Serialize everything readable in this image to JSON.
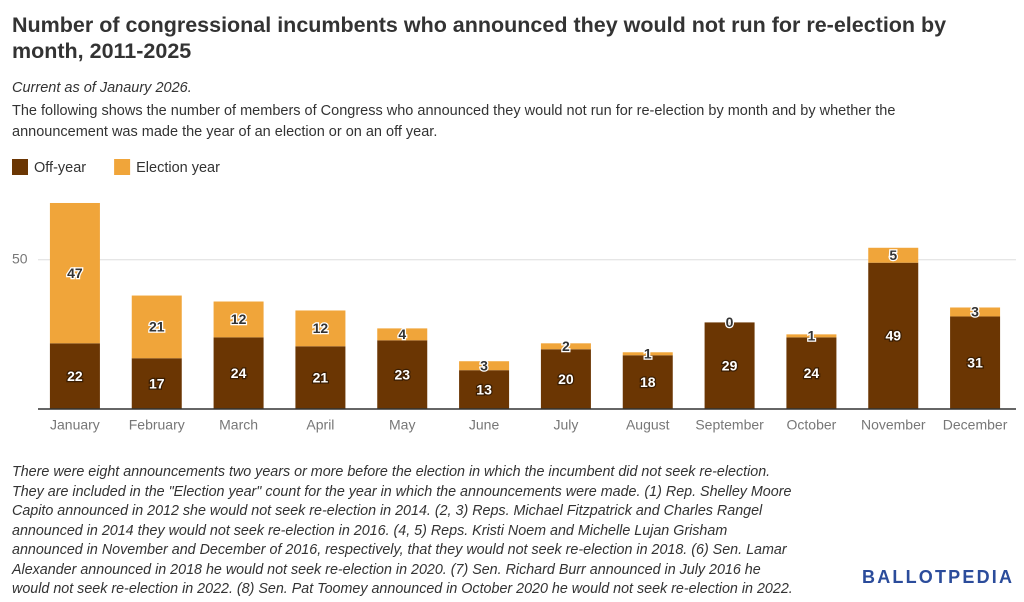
{
  "chart_data": {
    "type": "stacked-bar",
    "title": "Number of congressional incumbents who announced they would not run for re-election by month, 2011-2025",
    "subtitle": "Current as of Janaury 2026.",
    "description": "The following shows the number of members of Congress who announced they would not run for re-election by month and by whether the announcement was made the year of an election or on an off year.",
    "categories": [
      "January",
      "February",
      "March",
      "April",
      "May",
      "June",
      "July",
      "August",
      "September",
      "October",
      "November",
      "December"
    ],
    "series": [
      {
        "name": "Off-year",
        "color": "#6b3603",
        "values": [
          22,
          17,
          24,
          21,
          23,
          13,
          20,
          18,
          29,
          24,
          49,
          31
        ]
      },
      {
        "name": "Election year",
        "color": "#f0a53a",
        "values": [
          47,
          21,
          12,
          12,
          4,
          3,
          2,
          1,
          0,
          1,
          5,
          3
        ]
      }
    ],
    "ylim": [
      0,
      70
    ],
    "yticks": [
      50
    ],
    "grid": true,
    "legend": "top-left",
    "footnote": [
      "There were eight announcements two years or more before the election in which the incumbent did not seek re-election.",
      "They are included in the \"Election year\" count for the year in which the announcements were made. (1) Rep. Shelley Moore",
      "Capito announced in 2012 she would not seek re-election in 2014. (2, 3) Reps. Michael Fitzpatrick and Charles Rangel",
      "announced in 2014 they would not seek re-election in 2016. (4, 5) Reps. Kristi Noem and Michelle Lujan Grisham",
      "announced in November and December of 2016, respectively, that they would not seek re-election in 2018. (6) Sen. Lamar",
      "Alexander announced in 2018 he would not seek re-election in 2020. (7) Sen. Richard Burr announced in July 2016 he",
      "would not seek re-election in 2022. (8) Sen. Pat Toomey announced in October 2020 he would not seek re-election in 2022."
    ],
    "logo": "BALLOTPEDIA"
  }
}
